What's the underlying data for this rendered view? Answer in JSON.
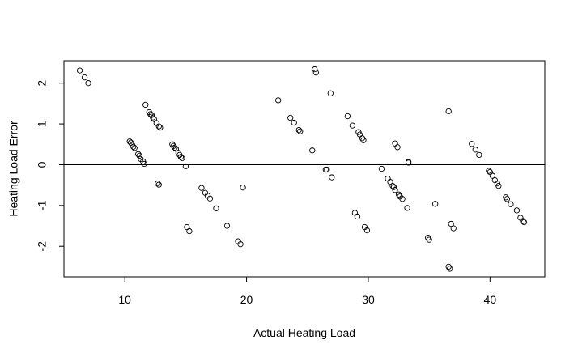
{
  "chart_data": {
    "type": "scatter",
    "title": "",
    "xlabel": "Actual Heating Load",
    "ylabel": "Heating Load Error",
    "xlim": [
      5.0,
      44.5
    ],
    "ylim": [
      -2.75,
      2.55
    ],
    "xticks": [
      10,
      20,
      30,
      40
    ],
    "yticks": [
      -2,
      -1,
      0,
      1,
      2
    ],
    "grid": false,
    "reference_line_y": 0,
    "marker": "open-circle",
    "colors": {
      "points": "#000000",
      "axes": "#000000",
      "background": "#ffffff"
    },
    "points": [
      {
        "x": 6.3,
        "y": 2.31
      },
      {
        "x": 6.7,
        "y": 2.14
      },
      {
        "x": 7.0,
        "y": 2.0
      },
      {
        "x": 10.4,
        "y": 0.57
      },
      {
        "x": 10.5,
        "y": 0.54
      },
      {
        "x": 10.6,
        "y": 0.49
      },
      {
        "x": 10.7,
        "y": 0.44
      },
      {
        "x": 10.8,
        "y": 0.41
      },
      {
        "x": 11.1,
        "y": 0.26
      },
      {
        "x": 11.2,
        "y": 0.22
      },
      {
        "x": 11.3,
        "y": 0.14
      },
      {
        "x": 11.5,
        "y": 0.08
      },
      {
        "x": 11.6,
        "y": 0.02
      },
      {
        "x": 11.7,
        "y": 1.47
      },
      {
        "x": 12.0,
        "y": 1.29
      },
      {
        "x": 12.1,
        "y": 1.24
      },
      {
        "x": 12.2,
        "y": 1.22
      },
      {
        "x": 12.3,
        "y": 1.16
      },
      {
        "x": 12.4,
        "y": 1.12
      },
      {
        "x": 12.6,
        "y": 1.02
      },
      {
        "x": 12.8,
        "y": 0.94
      },
      {
        "x": 12.9,
        "y": 0.91
      },
      {
        "x": 12.7,
        "y": -0.46
      },
      {
        "x": 12.8,
        "y": -0.49
      },
      {
        "x": 13.9,
        "y": 0.5
      },
      {
        "x": 14.0,
        "y": 0.46
      },
      {
        "x": 14.1,
        "y": 0.42
      },
      {
        "x": 14.2,
        "y": 0.39
      },
      {
        "x": 14.4,
        "y": 0.29
      },
      {
        "x": 14.5,
        "y": 0.24
      },
      {
        "x": 14.6,
        "y": 0.19
      },
      {
        "x": 14.7,
        "y": 0.16
      },
      {
        "x": 15.0,
        "y": -0.04
      },
      {
        "x": 15.1,
        "y": -1.53
      },
      {
        "x": 15.3,
        "y": -1.63
      },
      {
        "x": 16.3,
        "y": -0.57
      },
      {
        "x": 16.6,
        "y": -0.69
      },
      {
        "x": 16.8,
        "y": -0.76
      },
      {
        "x": 17.0,
        "y": -0.83
      },
      {
        "x": 17.5,
        "y": -1.07
      },
      {
        "x": 18.4,
        "y": -1.5
      },
      {
        "x": 19.3,
        "y": -1.88
      },
      {
        "x": 19.5,
        "y": -1.95
      },
      {
        "x": 19.7,
        "y": -0.56
      },
      {
        "x": 22.6,
        "y": 1.58
      },
      {
        "x": 23.6,
        "y": 1.15
      },
      {
        "x": 23.9,
        "y": 1.03
      },
      {
        "x": 24.3,
        "y": 0.85
      },
      {
        "x": 24.4,
        "y": 0.82
      },
      {
        "x": 25.4,
        "y": 0.35
      },
      {
        "x": 25.6,
        "y": 2.34
      },
      {
        "x": 25.7,
        "y": 2.26
      },
      {
        "x": 26.5,
        "y": -0.12
      },
      {
        "x": 26.6,
        "y": -0.12
      },
      {
        "x": 26.9,
        "y": 1.75
      },
      {
        "x": 27.0,
        "y": -0.31
      },
      {
        "x": 28.3,
        "y": 1.19
      },
      {
        "x": 28.7,
        "y": 0.96
      },
      {
        "x": 28.9,
        "y": -1.18
      },
      {
        "x": 29.1,
        "y": -1.27
      },
      {
        "x": 29.2,
        "y": 0.8
      },
      {
        "x": 29.3,
        "y": 0.74
      },
      {
        "x": 29.5,
        "y": 0.65
      },
      {
        "x": 29.6,
        "y": 0.6
      },
      {
        "x": 29.7,
        "y": -1.53
      },
      {
        "x": 29.9,
        "y": -1.61
      },
      {
        "x": 31.1,
        "y": -0.1
      },
      {
        "x": 31.6,
        "y": -0.34
      },
      {
        "x": 31.8,
        "y": -0.42
      },
      {
        "x": 32.0,
        "y": -0.52
      },
      {
        "x": 32.1,
        "y": -0.55
      },
      {
        "x": 32.2,
        "y": -0.62
      },
      {
        "x": 32.2,
        "y": 0.52
      },
      {
        "x": 32.4,
        "y": 0.43
      },
      {
        "x": 32.5,
        "y": -0.73
      },
      {
        "x": 32.6,
        "y": -0.78
      },
      {
        "x": 32.8,
        "y": -0.84
      },
      {
        "x": 33.2,
        "y": -1.06
      },
      {
        "x": 33.3,
        "y": 0.07
      },
      {
        "x": 33.3,
        "y": 0.05
      },
      {
        "x": 34.9,
        "y": -1.79
      },
      {
        "x": 35.0,
        "y": -1.84
      },
      {
        "x": 35.5,
        "y": -0.96
      },
      {
        "x": 36.6,
        "y": 1.31
      },
      {
        "x": 36.6,
        "y": -2.5
      },
      {
        "x": 36.7,
        "y": -2.55
      },
      {
        "x": 36.8,
        "y": -1.45
      },
      {
        "x": 37.0,
        "y": -1.56
      },
      {
        "x": 38.5,
        "y": 0.51
      },
      {
        "x": 38.8,
        "y": 0.37
      },
      {
        "x": 39.1,
        "y": 0.24
      },
      {
        "x": 39.9,
        "y": -0.15
      },
      {
        "x": 40.0,
        "y": -0.18
      },
      {
        "x": 40.2,
        "y": -0.27
      },
      {
        "x": 40.4,
        "y": -0.38
      },
      {
        "x": 40.6,
        "y": -0.46
      },
      {
        "x": 40.7,
        "y": -0.52
      },
      {
        "x": 41.3,
        "y": -0.8
      },
      {
        "x": 41.4,
        "y": -0.84
      },
      {
        "x": 41.7,
        "y": -0.97
      },
      {
        "x": 42.2,
        "y": -1.12
      },
      {
        "x": 42.5,
        "y": -1.3
      },
      {
        "x": 42.7,
        "y": -1.38
      },
      {
        "x": 42.8,
        "y": -1.41
      }
    ]
  }
}
